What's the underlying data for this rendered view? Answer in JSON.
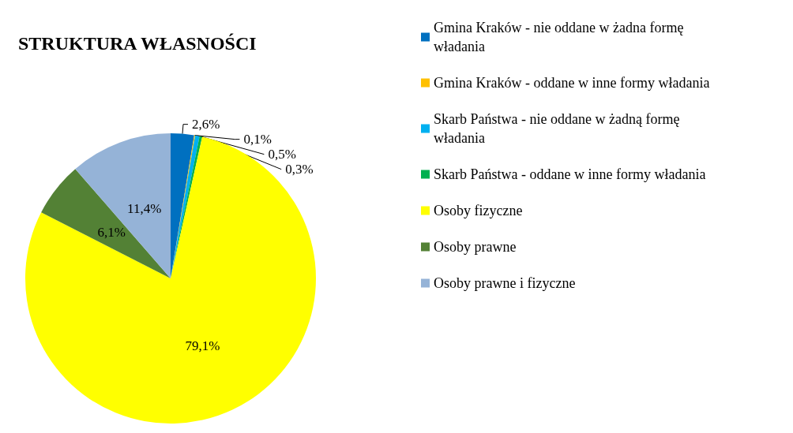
{
  "chart_data": {
    "type": "pie",
    "title": "STRUKTURA WŁASNOŚCI",
    "categories": [
      "Gmina Kraków - nie oddane w żadna formę władania",
      "Gmina Kraków - oddane w inne formy władania",
      "Skarb Państwa - nie oddane w żadną formę władania",
      "Skarb Państwa - oddane w inne formy władania",
      "Osoby fizyczne",
      "Osoby prawne",
      "Osoby prawne i fizyczne"
    ],
    "values": [
      2.6,
      0.1,
      0.5,
      0.3,
      79.1,
      6.1,
      11.4
    ],
    "value_labels": [
      "2,6%",
      "0,1%",
      "0,5%",
      "0,3%",
      "79,1%",
      "6,1%",
      "11,4%"
    ],
    "colors": [
      "#0070c0",
      "#ffc000",
      "#00b0f0",
      "#00b050",
      "#ffff00",
      "#538135",
      "#95b3d7"
    ],
    "legend": "right"
  }
}
